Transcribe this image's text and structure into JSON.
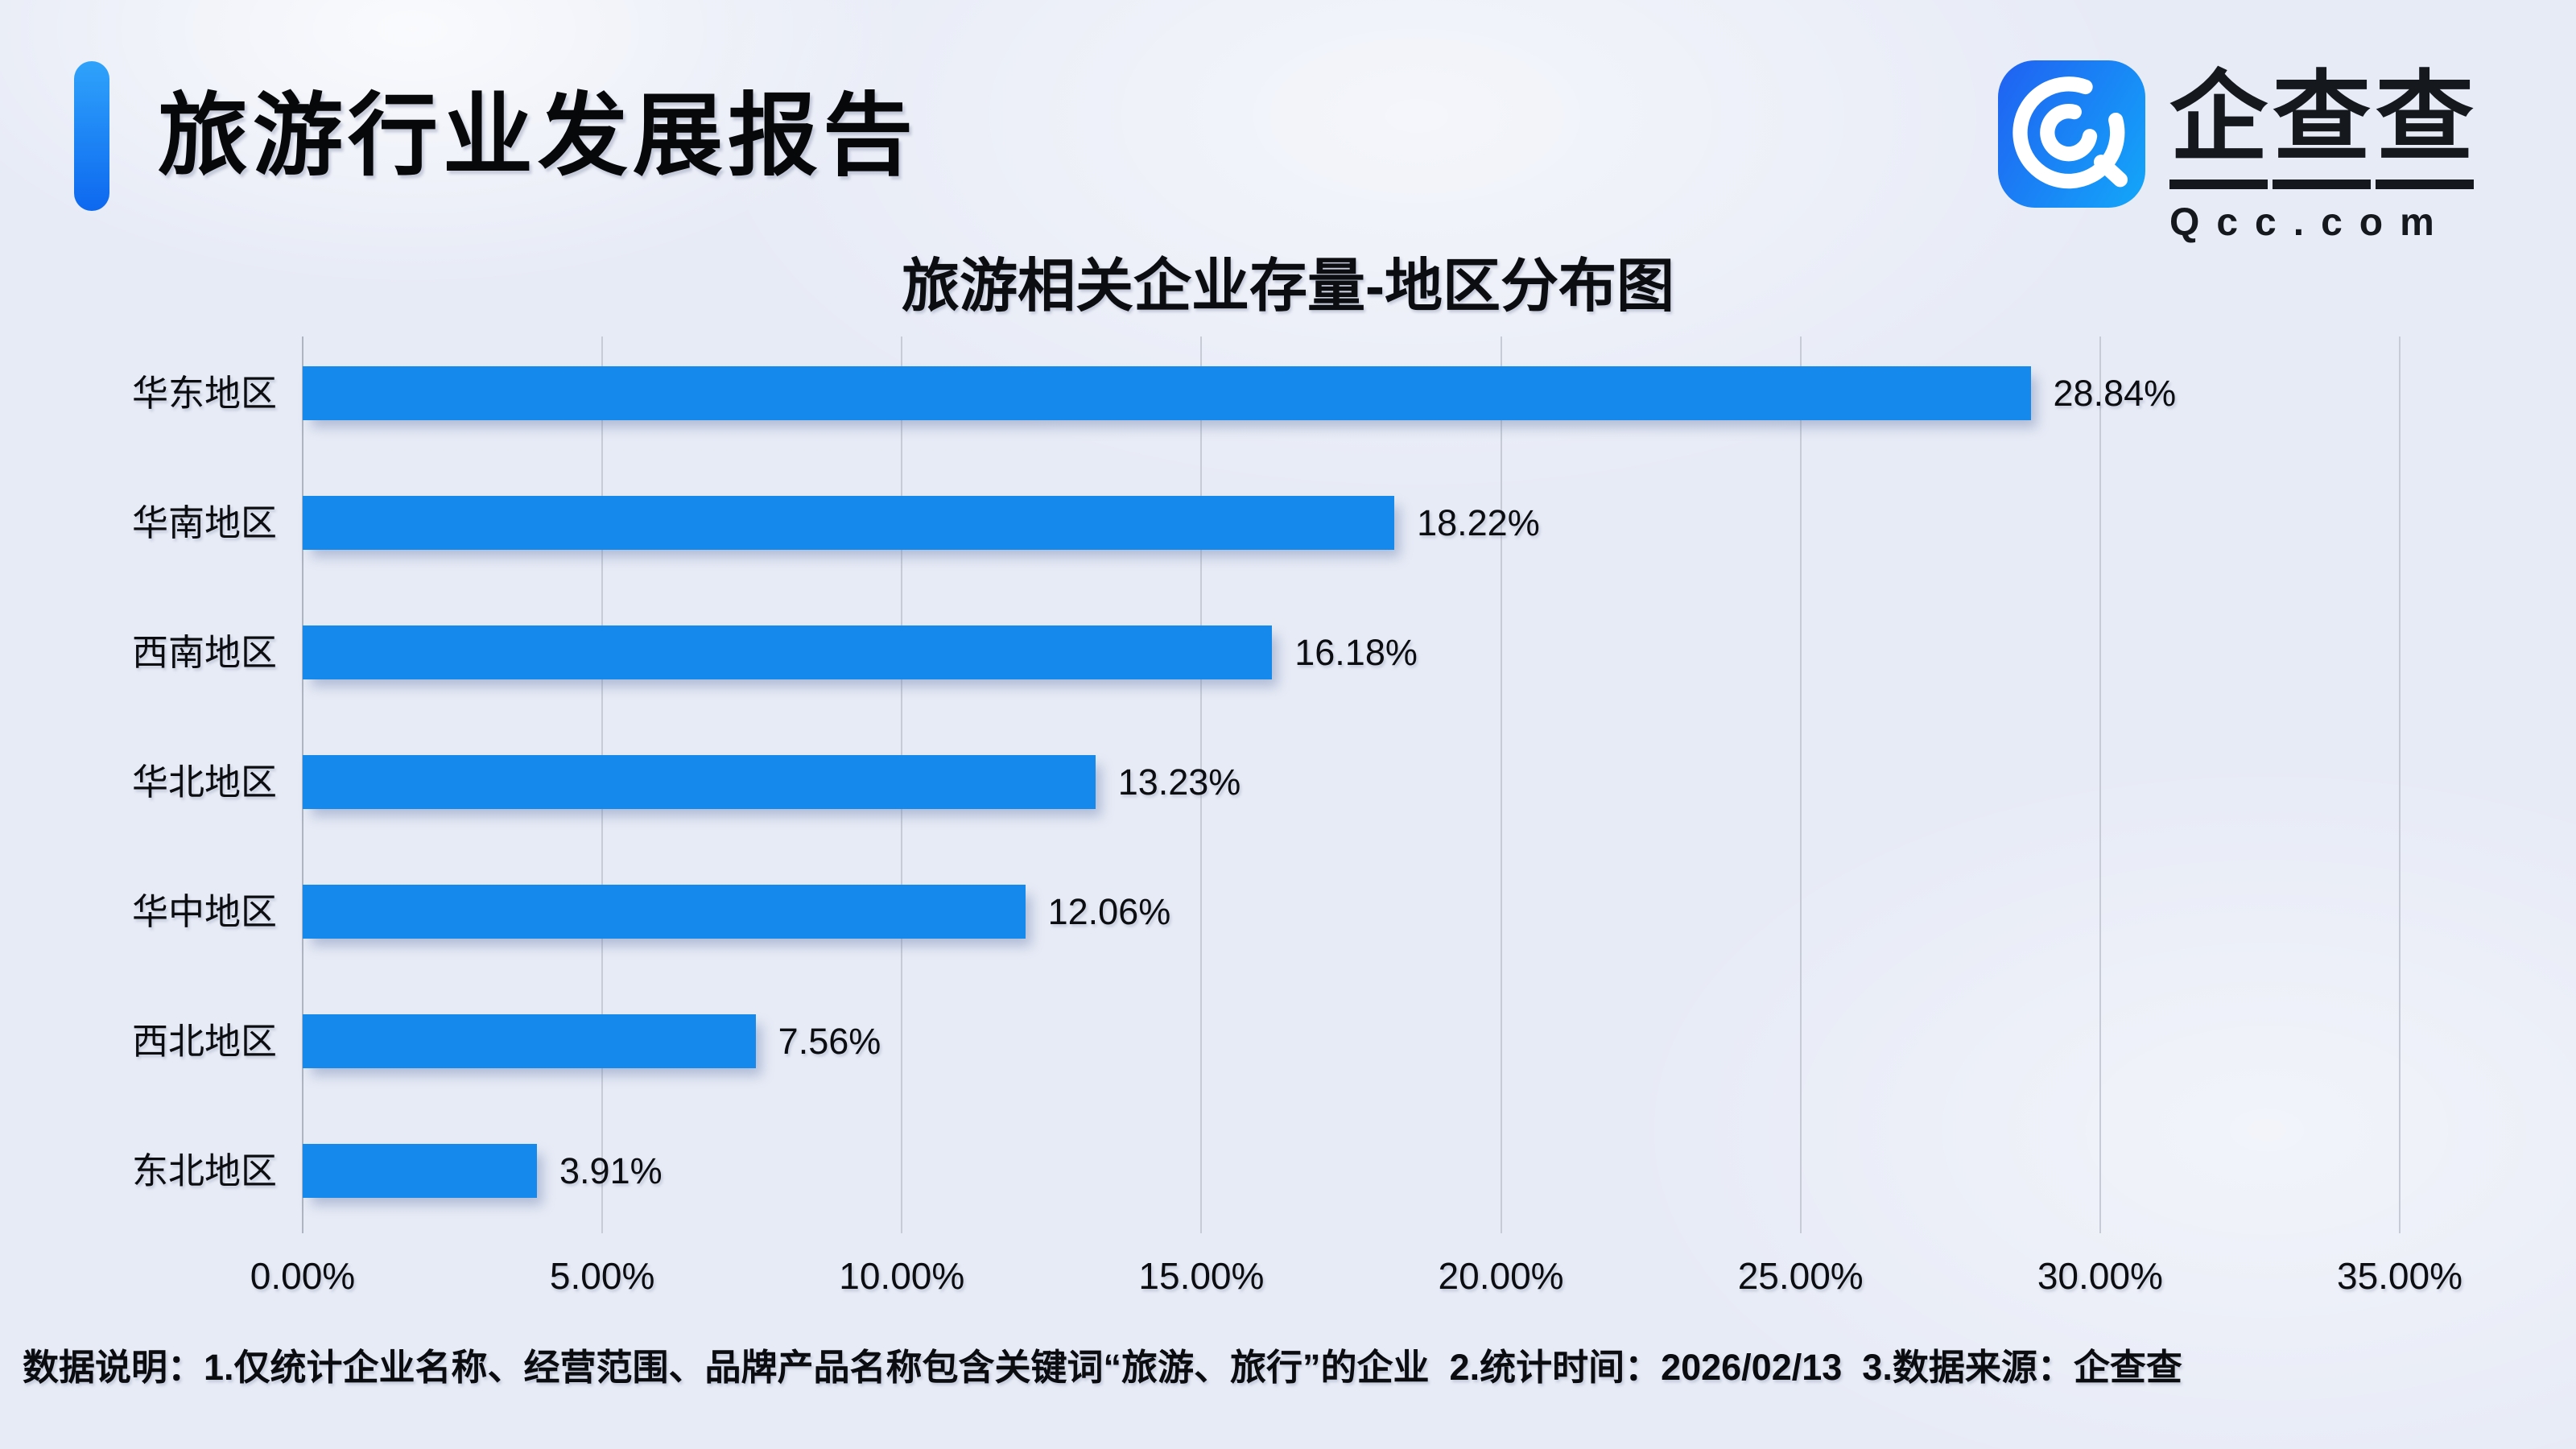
{
  "header": {
    "title": "旅游行业发展报告"
  },
  "logo": {
    "brand": "企查查",
    "domain": "Qcc.com",
    "icon": "qcc-magnifier-spiral-icon",
    "tile_color_start": "#1f66f2",
    "tile_color_end": "#14a2f9"
  },
  "chart_data": {
    "type": "bar",
    "orientation": "horizontal",
    "title": "旅游相关企业存量-地区分布图",
    "categories": [
      "华东地区",
      "华南地区",
      "西南地区",
      "华北地区",
      "华中地区",
      "西北地区",
      "东北地区"
    ],
    "values": [
      28.84,
      18.22,
      16.18,
      13.23,
      12.06,
      7.56,
      3.91
    ],
    "value_labels": [
      "28.84%",
      "18.22%",
      "16.18%",
      "13.23%",
      "12.06%",
      "7.56%",
      "3.91%"
    ],
    "xlim": [
      0,
      35
    ],
    "x_tick_labels": [
      "0.00%",
      "5.00%",
      "10.00%",
      "15.00%",
      "20.00%",
      "25.00%",
      "30.00%",
      "35.00%"
    ],
    "bar_color": "#158aec",
    "grid": true,
    "legend_position": "none"
  },
  "footer": {
    "note": "数据说明：1.仅统计企业名称、经营范围、品牌产品名称包含关键词“旅游、旅行”的企业  2.统计时间：2026/02/13  3.数据来源：企查查"
  }
}
